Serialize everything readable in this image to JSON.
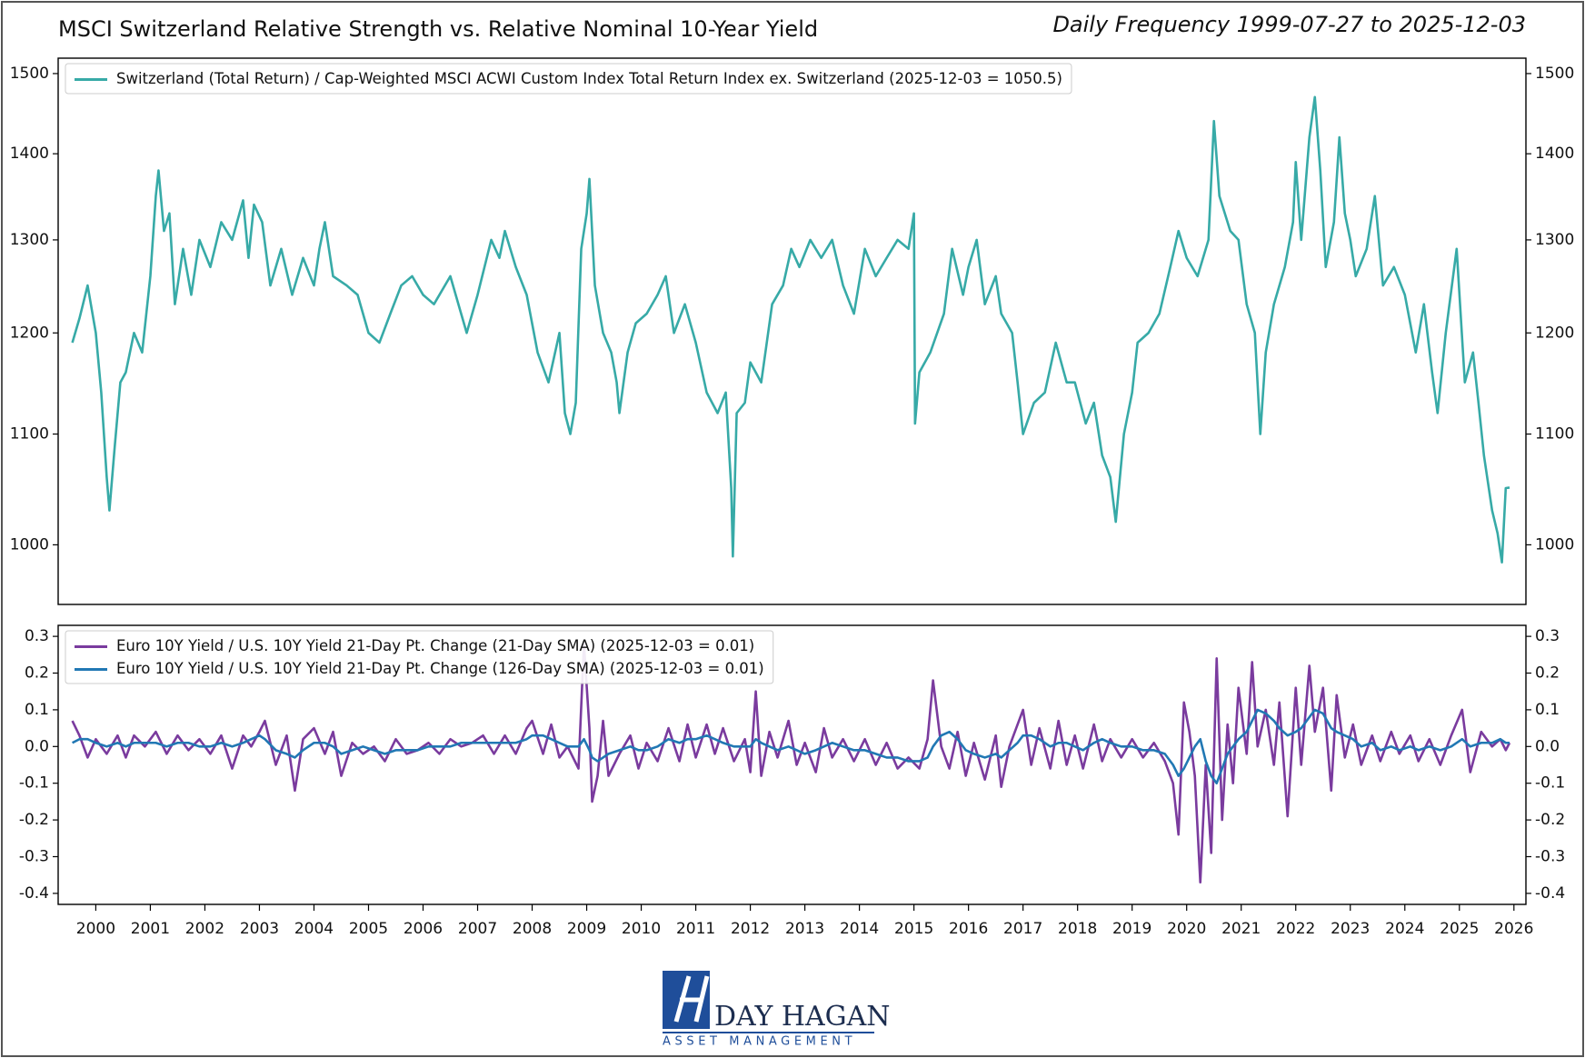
{
  "chart_data": [
    {
      "type": "line",
      "title": "MSCI Switzerland Relative Strength vs. Relative Nominal 10-Year Yield",
      "subtitle": "Daily Frequency 1999-07-27 to 2025-12-03",
      "log": true,
      "legend": "upper left",
      "xlim": [
        1999.31,
        2026.22
      ],
      "ylim": [
        950,
        1520
      ],
      "yticks": [
        1000,
        1100,
        1200,
        1300,
        1400,
        1500
      ],
      "x": [
        1999.57,
        1999.7,
        1999.85,
        2000.0,
        2000.1,
        2000.2,
        2000.25,
        2000.35,
        2000.45,
        2000.55,
        2000.7,
        2000.85,
        2001.0,
        2001.1,
        2001.15,
        2001.25,
        2001.35,
        2001.45,
        2001.6,
        2001.75,
        2001.9,
        2002.1,
        2002.3,
        2002.5,
        2002.7,
        2002.8,
        2002.9,
        2003.05,
        2003.2,
        2003.4,
        2003.6,
        2003.8,
        2004.0,
        2004.1,
        2004.2,
        2004.35,
        2004.6,
        2004.8,
        2005.0,
        2005.2,
        2005.4,
        2005.6,
        2005.8,
        2006.0,
        2006.2,
        2006.5,
        2006.8,
        2007.0,
        2007.25,
        2007.4,
        2007.5,
        2007.7,
        2007.9,
        2008.1,
        2008.3,
        2008.5,
        2008.6,
        2008.7,
        2008.8,
        2008.9,
        2009.0,
        2009.05,
        2009.15,
        2009.3,
        2009.45,
        2009.55,
        2009.6,
        2009.75,
        2009.9,
        2010.1,
        2010.3,
        2010.45,
        2010.6,
        2010.8,
        2011.0,
        2011.2,
        2011.4,
        2011.55,
        2011.65,
        2011.68,
        2011.75,
        2011.9,
        2012.0,
        2012.2,
        2012.4,
        2012.6,
        2012.75,
        2012.9,
        2013.1,
        2013.3,
        2013.5,
        2013.7,
        2013.9,
        2014.1,
        2014.3,
        2014.5,
        2014.7,
        2014.9,
        2015.0,
        2015.02,
        2015.1,
        2015.3,
        2015.55,
        2015.7,
        2015.9,
        2016.0,
        2016.15,
        2016.3,
        2016.5,
        2016.6,
        2016.8,
        2016.9,
        2017.0,
        2017.2,
        2017.4,
        2017.6,
        2017.8,
        2017.95,
        2018.15,
        2018.3,
        2018.45,
        2018.6,
        2018.7,
        2018.85,
        2019.0,
        2019.1,
        2019.3,
        2019.5,
        2019.7,
        2019.85,
        2020.0,
        2020.2,
        2020.4,
        2020.5,
        2020.6,
        2020.8,
        2020.95,
        2021.1,
        2021.25,
        2021.35,
        2021.45,
        2021.6,
        2021.8,
        2021.95,
        2022.0,
        2022.1,
        2022.25,
        2022.35,
        2022.45,
        2022.55,
        2022.7,
        2022.8,
        2022.9,
        2023.0,
        2023.1,
        2023.3,
        2023.45,
        2023.6,
        2023.8,
        2024.0,
        2024.2,
        2024.35,
        2024.5,
        2024.6,
        2024.75,
        2024.95,
        2025.1,
        2025.25,
        2025.35,
        2025.45,
        2025.6,
        2025.7,
        2025.78,
        2025.85,
        2025.92
      ],
      "series": [
        {
          "name": "Switzerland (Total Return) / Cap-Weighted MSCI ACWI Custom Index Total Return Index ex. Switzerland (2025-12-03 = 1050.5)",
          "color": "#37aaa7",
          "values": [
            1190,
            1215,
            1250,
            1200,
            1140,
            1060,
            1030,
            1090,
            1150,
            1160,
            1200,
            1180,
            1260,
            1350,
            1380,
            1310,
            1330,
            1230,
            1290,
            1240,
            1300,
            1270,
            1320,
            1300,
            1345,
            1280,
            1340,
            1320,
            1250,
            1290,
            1240,
            1280,
            1250,
            1290,
            1320,
            1260,
            1250,
            1240,
            1200,
            1190,
            1220,
            1250,
            1260,
            1240,
            1230,
            1260,
            1200,
            1240,
            1300,
            1280,
            1310,
            1270,
            1240,
            1180,
            1150,
            1200,
            1120,
            1100,
            1130,
            1290,
            1330,
            1370,
            1250,
            1200,
            1180,
            1150,
            1120,
            1180,
            1210,
            1220,
            1240,
            1260,
            1200,
            1230,
            1190,
            1140,
            1120,
            1140,
            1050,
            990,
            1120,
            1130,
            1170,
            1150,
            1230,
            1250,
            1290,
            1270,
            1300,
            1280,
            1300,
            1250,
            1220,
            1290,
            1260,
            1280,
            1300,
            1290,
            1330,
            1110,
            1160,
            1180,
            1220,
            1290,
            1240,
            1270,
            1300,
            1230,
            1260,
            1220,
            1200,
            1150,
            1100,
            1130,
            1140,
            1190,
            1150,
            1150,
            1110,
            1130,
            1080,
            1060,
            1020,
            1100,
            1140,
            1190,
            1200,
            1220,
            1270,
            1310,
            1280,
            1260,
            1300,
            1440,
            1350,
            1310,
            1300,
            1230,
            1200,
            1100,
            1180,
            1230,
            1270,
            1320,
            1390,
            1300,
            1420,
            1470,
            1380,
            1270,
            1320,
            1420,
            1330,
            1300,
            1260,
            1290,
            1350,
            1250,
            1270,
            1240,
            1180,
            1230,
            1160,
            1120,
            1200,
            1290,
            1150,
            1180,
            1130,
            1080,
            1030,
            1010,
            985,
            1050,
            1050.5
          ]
        }
      ]
    },
    {
      "type": "line",
      "legend": "upper left",
      "xlim": [
        1999.31,
        2026.22
      ],
      "xticks": [
        2000,
        2001,
        2002,
        2003,
        2004,
        2005,
        2006,
        2007,
        2008,
        2009,
        2010,
        2011,
        2012,
        2013,
        2014,
        2015,
        2016,
        2017,
        2018,
        2019,
        2020,
        2021,
        2022,
        2023,
        2024,
        2025,
        2026
      ],
      "ylim": [
        -0.43,
        0.33
      ],
      "yticks": [
        0.3,
        0.2,
        0.1,
        {
          "value": 0,
          "label": "0.0"
        },
        -0.1,
        -0.2,
        -0.3,
        -0.4
      ],
      "x": [
        1999.57,
        1999.7,
        1999.85,
        2000.0,
        2000.2,
        2000.4,
        2000.55,
        2000.7,
        2000.9,
        2001.1,
        2001.3,
        2001.5,
        2001.7,
        2001.9,
        2002.1,
        2002.3,
        2002.5,
        2002.7,
        2002.85,
        2003.0,
        2003.1,
        2003.3,
        2003.5,
        2003.65,
        2003.8,
        2004.0,
        2004.2,
        2004.35,
        2004.5,
        2004.7,
        2004.9,
        2005.1,
        2005.3,
        2005.5,
        2005.7,
        2005.9,
        2006.1,
        2006.3,
        2006.5,
        2006.7,
        2006.9,
        2007.1,
        2007.3,
        2007.5,
        2007.7,
        2007.9,
        2008.0,
        2008.2,
        2008.35,
        2008.5,
        2008.65,
        2008.85,
        2008.95,
        2009.05,
        2009.1,
        2009.2,
        2009.3,
        2009.4,
        2009.6,
        2009.8,
        2009.95,
        2010.1,
        2010.3,
        2010.5,
        2010.7,
        2010.85,
        2011.0,
        2011.2,
        2011.35,
        2011.5,
        2011.7,
        2011.9,
        2012.0,
        2012.1,
        2012.2,
        2012.35,
        2012.5,
        2012.7,
        2012.85,
        2013.0,
        2013.2,
        2013.35,
        2013.5,
        2013.7,
        2013.9,
        2014.1,
        2014.3,
        2014.5,
        2014.7,
        2014.9,
        2015.1,
        2015.25,
        2015.35,
        2015.5,
        2015.65,
        2015.8,
        2015.95,
        2016.1,
        2016.3,
        2016.5,
        2016.6,
        2016.75,
        2016.9,
        2017.0,
        2017.15,
        2017.3,
        2017.5,
        2017.65,
        2017.8,
        2017.95,
        2018.1,
        2018.3,
        2018.45,
        2018.6,
        2018.8,
        2019.0,
        2019.2,
        2019.4,
        2019.6,
        2019.75,
        2019.85,
        2019.95,
        2020.05,
        2020.15,
        2020.25,
        2020.35,
        2020.45,
        2020.55,
        2020.65,
        2020.75,
        2020.85,
        2020.95,
        2021.1,
        2021.2,
        2021.3,
        2021.45,
        2021.6,
        2021.7,
        2021.85,
        2022.0,
        2022.1,
        2022.25,
        2022.35,
        2022.5,
        2022.65,
        2022.75,
        2022.9,
        2023.05,
        2023.2,
        2023.4,
        2023.55,
        2023.75,
        2023.9,
        2024.1,
        2024.25,
        2024.45,
        2024.65,
        2024.85,
        2025.05,
        2025.2,
        2025.4,
        2025.6,
        2025.75,
        2025.85,
        2025.92
      ],
      "series": [
        {
          "name": "Euro 10Y Yield / U.S. 10Y Yield 21-Day Pt. Change (21-Day SMA) (2025-12-03 = 0.01)",
          "color": "#7a3b9e",
          "values": [
            0.07,
            0.03,
            -0.03,
            0.02,
            -0.02,
            0.03,
            -0.03,
            0.03,
            0.0,
            0.04,
            -0.02,
            0.03,
            -0.01,
            0.02,
            -0.02,
            0.03,
            -0.06,
            0.03,
            0.0,
            0.04,
            0.07,
            -0.05,
            0.03,
            -0.12,
            0.02,
            0.05,
            -0.02,
            0.04,
            -0.08,
            0.01,
            -0.02,
            0.0,
            -0.04,
            0.02,
            -0.02,
            -0.01,
            0.01,
            -0.02,
            0.02,
            0.0,
            0.01,
            0.03,
            -0.02,
            0.03,
            -0.02,
            0.05,
            0.07,
            -0.02,
            0.06,
            -0.03,
            0.0,
            -0.06,
            0.28,
            0.05,
            -0.15,
            -0.08,
            0.07,
            -0.08,
            -0.02,
            0.03,
            -0.06,
            0.01,
            -0.04,
            0.05,
            -0.04,
            0.06,
            -0.03,
            0.06,
            -0.02,
            0.05,
            -0.04,
            0.02,
            -0.07,
            0.15,
            -0.08,
            0.04,
            -0.03,
            0.07,
            -0.05,
            0.01,
            -0.07,
            0.05,
            -0.03,
            0.02,
            -0.04,
            0.02,
            -0.05,
            0.01,
            -0.06,
            -0.03,
            -0.06,
            0.02,
            0.18,
            0.0,
            -0.06,
            0.04,
            -0.08,
            0.01,
            -0.09,
            0.03,
            -0.11,
            0.0,
            0.06,
            0.1,
            -0.05,
            0.05,
            -0.06,
            0.07,
            -0.05,
            0.03,
            -0.06,
            0.06,
            -0.04,
            0.02,
            -0.03,
            0.02,
            -0.03,
            0.01,
            -0.04,
            -0.1,
            -0.24,
            0.12,
            0.04,
            -0.08,
            -0.37,
            -0.05,
            -0.29,
            0.24,
            -0.2,
            0.06,
            -0.1,
            0.16,
            -0.02,
            0.23,
            0.0,
            0.1,
            -0.05,
            0.12,
            -0.19,
            0.16,
            -0.05,
            0.22,
            0.04,
            0.16,
            -0.12,
            0.14,
            -0.03,
            0.06,
            -0.05,
            0.03,
            -0.04,
            0.04,
            -0.02,
            0.03,
            -0.04,
            0.02,
            -0.05,
            0.03,
            0.1,
            -0.07,
            0.04,
            0.0,
            0.02,
            -0.01,
            0.01
          ]
        },
        {
          "name": "Euro 10Y Yield / U.S. 10Y Yield 21-Day Pt. Change (126-Day SMA) (2025-12-03 = 0.01)",
          "color": "#2178b4",
          "values": [
            0.01,
            0.02,
            0.02,
            0.01,
            0.0,
            0.01,
            0.0,
            0.01,
            0.01,
            0.01,
            0.0,
            0.01,
            0.01,
            0.0,
            0.0,
            0.01,
            0.0,
            0.01,
            0.02,
            0.03,
            0.02,
            -0.01,
            -0.02,
            -0.03,
            -0.01,
            0.01,
            0.01,
            0.0,
            -0.02,
            -0.01,
            0.0,
            -0.01,
            -0.02,
            -0.01,
            -0.01,
            -0.01,
            0.0,
            0.0,
            0.0,
            0.01,
            0.01,
            0.01,
            0.01,
            0.01,
            0.01,
            0.02,
            0.03,
            0.03,
            0.02,
            0.01,
            0.0,
            0.0,
            0.02,
            -0.01,
            -0.03,
            -0.04,
            -0.03,
            -0.02,
            -0.01,
            0.0,
            -0.01,
            -0.01,
            0.0,
            0.02,
            0.01,
            0.02,
            0.02,
            0.03,
            0.02,
            0.01,
            0.0,
            0.0,
            0.0,
            0.02,
            0.01,
            0.0,
            -0.01,
            0.0,
            -0.01,
            -0.02,
            -0.01,
            0.0,
            0.01,
            0.0,
            -0.01,
            -0.01,
            -0.02,
            -0.03,
            -0.03,
            -0.04,
            -0.04,
            -0.03,
            0.0,
            0.03,
            0.04,
            0.02,
            -0.01,
            -0.02,
            -0.03,
            -0.02,
            -0.03,
            -0.01,
            0.01,
            0.03,
            0.03,
            0.02,
            0.0,
            0.01,
            0.01,
            0.0,
            -0.01,
            0.01,
            0.02,
            0.01,
            0.0,
            0.0,
            -0.01,
            -0.01,
            -0.02,
            -0.05,
            -0.08,
            -0.06,
            -0.03,
            0.0,
            0.02,
            -0.04,
            -0.08,
            -0.1,
            -0.06,
            -0.02,
            0.0,
            0.02,
            0.04,
            0.07,
            0.1,
            0.09,
            0.07,
            0.05,
            0.03,
            0.04,
            0.05,
            0.08,
            0.1,
            0.09,
            0.05,
            0.04,
            0.03,
            0.02,
            0.0,
            0.01,
            -0.01,
            0.0,
            -0.01,
            0.0,
            -0.01,
            0.0,
            -0.01,
            0.0,
            0.02,
            0.0,
            0.01,
            0.01,
            0.02,
            0.01,
            0.01
          ]
        }
      ]
    }
  ],
  "logo": {
    "name": "DAY HAGAN",
    "tagline": "ASSET MANAGEMENT"
  }
}
